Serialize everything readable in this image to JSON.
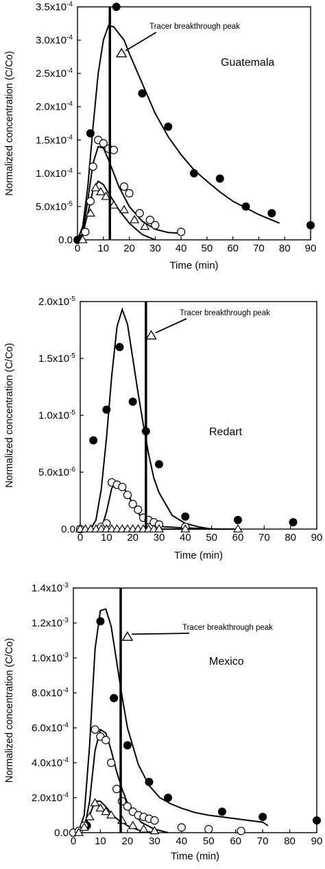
{
  "figure_labels": {
    "ylabel": "Normalized concentration (C/Co)",
    "xlabel": "Time (min)",
    "annotation": "Tracer breakthrough peak"
  },
  "chart_data": [
    {
      "type": "scatter",
      "title": "",
      "site": "Guatemala",
      "xlabel": "Time (min)",
      "ylabel": "Normalized concentration (C/Co)",
      "annotation": "Tracer breakthrough peak",
      "xlim": [
        0,
        90
      ],
      "ylim": [
        0,
        0.00035
      ],
      "x_ticks": [
        0,
        10,
        20,
        30,
        40,
        50,
        60,
        70,
        80,
        90
      ],
      "x_tick_labels": [
        "0",
        "10",
        "20",
        "30",
        "40",
        "50",
        "60",
        "70",
        "80",
        "90"
      ],
      "y_ticks": [
        0,
        5e-05,
        0.0001,
        0.00015,
        0.0002,
        0.00025,
        0.0003,
        0.00035
      ],
      "y_tick_labels": [
        "0.0",
        "5.0x10-5",
        "1.0x10-4",
        "1.5x10-4",
        "2.0x10-4",
        "2.5x10-4",
        "3.0x10-4",
        "3.5x10-4"
      ],
      "tracer_peak_time": 12.5,
      "tracer_marker": [
        17,
        0.00028
      ],
      "grid": false,
      "legend": "none",
      "series": [
        {
          "marker": "filled-circle",
          "x": [
            0,
            5,
            15,
            25,
            35,
            45,
            55,
            65,
            75,
            90
          ],
          "y": [
            0.0,
            0.00016,
            0.00035,
            0.00022,
            0.00017,
            0.0001,
            9.2e-05,
            5e-05,
            4e-05,
            2.2e-05
          ],
          "fit_x": [
            0,
            2,
            4,
            6,
            8,
            10,
            12,
            14,
            16,
            18,
            20,
            25,
            30,
            35,
            40,
            45,
            50,
            55,
            60,
            65,
            70,
            75,
            78
          ],
          "fit_y": [
            0.0,
            2e-05,
            8e-05,
            0.00017,
            0.00025,
            0.0003,
            0.000322,
            0.00032,
            0.00031,
            0.0003,
            0.00028,
            0.000235,
            0.00019,
            0.000155,
            0.000128,
            0.000105,
            8.8e-05,
            7.2e-05,
            5.8e-05,
            4.8e-05,
            3.8e-05,
            3e-05,
            2.5e-05
          ]
        },
        {
          "marker": "open-circle",
          "x": [
            3,
            5,
            6,
            8,
            10,
            12,
            14,
            18,
            20,
            24,
            28,
            30,
            40
          ],
          "y": [
            1.2e-05,
            5.8e-05,
            0.00011,
            0.00015,
            0.000145,
            0.000137,
            0.000135,
            8e-05,
            7e-05,
            4e-05,
            3e-05,
            2.2e-05,
            1.2e-05
          ],
          "fit_x": [
            0,
            2,
            4,
            6,
            8,
            10,
            12,
            14,
            16,
            20,
            25,
            30,
            35,
            40
          ],
          "fit_y": [
            0.0,
            1e-05,
            6e-05,
            0.000115,
            0.00014,
            0.000138,
            0.00012,
            0.0001,
            8e-05,
            5e-05,
            2.8e-05,
            1.6e-05,
            1.1e-05,
            1e-05
          ]
        },
        {
          "marker": "open-triangle",
          "x": [
            2,
            5,
            7,
            9,
            11,
            14,
            18,
            22,
            26
          ],
          "y": [
            0.0,
            4e-05,
            7.8e-05,
            7.2e-05,
            6.5e-05,
            5.2e-05,
            4.5e-05,
            3e-05,
            2e-05
          ],
          "fit_x": [
            0,
            2,
            4,
            6,
            8,
            10,
            12,
            14,
            16,
            20,
            25,
            30
          ],
          "fit_y": [
            0.0,
            8e-06,
            4e-05,
            7.5e-05,
            8.8e-05,
            8.3e-05,
            7e-05,
            5.8e-05,
            4.5e-05,
            2.5e-05,
            8e-06,
            0.0
          ]
        }
      ]
    },
    {
      "type": "scatter",
      "title": "",
      "site": "Redart",
      "xlabel": "Time (min)",
      "ylabel": "Normalized concentration (C/Co)",
      "annotation": "Tracer breakthrough peak",
      "xlim": [
        0,
        90
      ],
      "ylim": [
        0,
        2e-05
      ],
      "x_ticks": [
        0,
        10,
        20,
        30,
        40,
        50,
        60,
        70,
        80,
        90
      ],
      "x_tick_labels": [
        "0",
        "10",
        "20",
        "30",
        "40",
        "50",
        "60",
        "70",
        "80",
        "90"
      ],
      "y_ticks": [
        0,
        5e-06,
        1e-05,
        1.5e-05,
        2e-05
      ],
      "y_tick_labels": [
        "0.0",
        "5.0x10-6",
        "1.0x10-5",
        "1.5x10-5",
        "2.0x10-5"
      ],
      "tracer_peak_time": 25,
      "tracer_marker": [
        27,
        1.7e-05
      ],
      "grid": false,
      "legend": "none",
      "series": [
        {
          "marker": "filled-circle",
          "x": [
            0,
            5,
            10,
            15,
            20,
            25,
            30,
            40,
            60,
            81
          ],
          "y": [
            0.0,
            7.8e-06,
            1.05e-05,
            1.6e-05,
            1.12e-05,
            8.6e-06,
            5.7e-06,
            1.1e-06,
            8e-07,
            6e-07
          ],
          "fit_x": [
            0,
            4,
            6,
            8,
            10,
            12,
            14,
            16,
            18,
            20,
            22,
            24,
            26,
            28,
            30,
            35,
            40,
            45,
            50
          ],
          "fit_y": [
            0.0,
            0.0,
            8e-07,
            3.5e-06,
            8e-06,
            1.35e-05,
            1.78e-05,
            1.93e-05,
            1.8e-05,
            1.5e-05,
            1.2e-05,
            9.2e-06,
            6.6e-06,
            4.5e-06,
            3.2e-06,
            1.2e-06,
            5e-07,
            2e-07,
            0.0
          ]
        },
        {
          "marker": "open-circle",
          "x": [
            0,
            8,
            10,
            12,
            14,
            16,
            18,
            20,
            22,
            24,
            26,
            28,
            30,
            40
          ],
          "y": [
            0.0,
            2e-07,
            5e-07,
            4.1e-06,
            3.9e-06,
            3.7e-06,
            3e-06,
            2.2e-06,
            1.7e-06,
            1e-06,
            8e-07,
            6e-07,
            4e-07,
            2e-07
          ],
          "fit_x": [
            0,
            8,
            10,
            12,
            14,
            16,
            18,
            20,
            22,
            25,
            28,
            32,
            40,
            52
          ],
          "fit_y": [
            0.0,
            0.0,
            1.5e-06,
            3.6e-06,
            4.1e-06,
            3.8e-06,
            3.1e-06,
            2.2e-06,
            1.4e-06,
            7e-07,
            4e-07,
            2e-07,
            1e-07,
            0.0
          ]
        },
        {
          "marker": "open-triangle",
          "x": [
            0,
            2,
            4,
            6,
            8,
            10,
            12,
            14,
            16,
            18,
            20,
            22,
            24,
            26,
            28,
            30,
            40,
            60
          ],
          "y": [
            0.0,
            0.0,
            0.0,
            0.0,
            0.0,
            0.0,
            0.0,
            0.0,
            0.0,
            0.0,
            0.0,
            0.0,
            0.0,
            0.0,
            0.0,
            0.0,
            0.0,
            0.0
          ],
          "fit_x": [
            0,
            60
          ],
          "fit_y": [
            0.0,
            0.0
          ]
        }
      ]
    },
    {
      "type": "scatter",
      "title": "",
      "site": "Mexico",
      "xlabel": "Time (min)",
      "ylabel": "Normalized concentration (C/Co)",
      "annotation": "Tracer breakthrough peak",
      "xlim": [
        0,
        90
      ],
      "ylim": [
        0,
        0.0014
      ],
      "x_ticks": [
        0,
        10,
        20,
        30,
        40,
        50,
        60,
        70,
        80,
        90
      ],
      "x_tick_labels": [
        "0",
        "10",
        "20",
        "30",
        "40",
        "50",
        "60",
        "70",
        "80",
        "90"
      ],
      "y_ticks": [
        0,
        0.0002,
        0.0004,
        0.0006,
        0.0008,
        0.001,
        0.0012,
        0.0014
      ],
      "y_tick_labels": [
        "0.0",
        "2.0x10-4",
        "4.0x10-4",
        "6.0x10-4",
        "8.0x10-4",
        "1.0x10-3",
        "1.2x10-3",
        "1.4x10-3"
      ],
      "tracer_peak_time": 17.5,
      "tracer_marker": [
        20,
        0.00112
      ],
      "grid": false,
      "legend": "none",
      "series": [
        {
          "marker": "filled-circle",
          "x": [
            0,
            5,
            10,
            15,
            20,
            28,
            35,
            55,
            70,
            90
          ],
          "y": [
            0.0,
            4e-05,
            0.00121,
            0.00077,
            0.0005,
            0.00029,
            0.0002,
            0.00012,
            9e-05,
            7e-05
          ],
          "fit_x": [
            0,
            2,
            4,
            6,
            8,
            10,
            12,
            14,
            16,
            18,
            20,
            24,
            28,
            32,
            36,
            40,
            45,
            50,
            55,
            60,
            65,
            70,
            72
          ],
          "fit_y": [
            0.0,
            1e-05,
            0.0001,
            0.0005,
            0.00105,
            0.00127,
            0.00128,
            0.00118,
            0.00098,
            0.00078,
            0.0006,
            0.00039,
            0.00027,
            0.0002,
            0.000165,
            0.00014,
            0.000115,
            0.0001,
            9e-05,
            8e-05,
            7e-05,
            6e-05,
            4e-05
          ]
        },
        {
          "marker": "open-circle",
          "x": [
            0,
            2,
            4,
            8,
            10,
            12,
            14,
            16,
            18,
            20,
            22,
            24,
            26,
            28,
            30,
            40,
            50,
            62
          ],
          "y": [
            0.0,
            1e-05,
            4e-05,
            0.00059,
            0.00055,
            0.00053,
            0.0004,
            0.00025,
            0.00018,
            0.00015,
            0.00012,
            0.0001,
            9e-05,
            8e-05,
            7e-05,
            3e-05,
            2e-05,
            1e-05
          ],
          "fit_x": [
            0,
            4,
            6,
            8,
            10,
            12,
            14,
            16,
            18,
            20,
            25,
            30,
            35
          ],
          "fit_y": [
            0.0,
            2e-05,
            0.00018,
            0.00047,
            0.00059,
            0.00057,
            0.00047,
            0.00035,
            0.00025,
            0.00017,
            6e-05,
            2e-05,
            0.0
          ]
        },
        {
          "marker": "open-triangle",
          "x": [
            2,
            4,
            6,
            8,
            10,
            12,
            14,
            18,
            22,
            26,
            30
          ],
          "y": [
            0.0,
            3e-05,
            9e-05,
            0.00017,
            0.00014,
            0.00012,
            0.0001,
            7e-05,
            4e-05,
            2e-05,
            1e-05
          ],
          "fit_x": [
            0,
            2,
            4,
            6,
            8,
            10,
            12,
            14,
            16,
            20,
            25,
            30
          ],
          "fit_y": [
            0.0,
            5e-06,
            3e-05,
            0.0001,
            0.00018,
            0.00018,
            0.00015,
            0.00011,
            8e-05,
            4e-05,
            1e-05,
            0.0
          ]
        }
      ]
    }
  ]
}
